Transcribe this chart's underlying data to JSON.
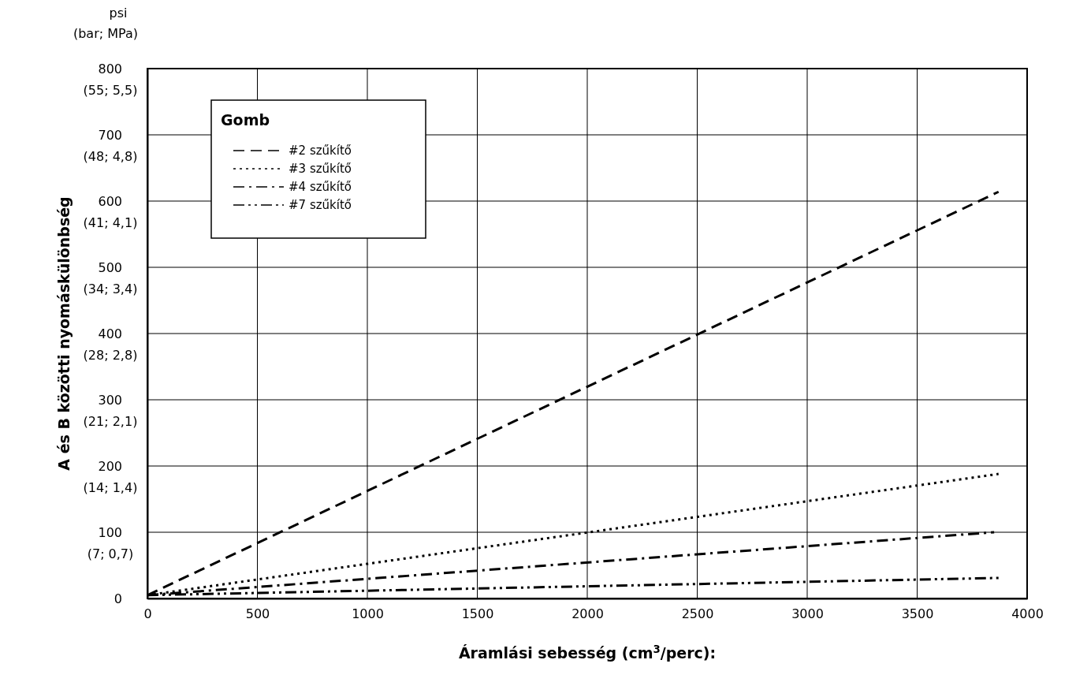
{
  "chart_data": {
    "type": "line",
    "xlabel": "Áramlási sebesség (cm$^{3}$/perc):",
    "ylabel": "A és B közötti nyomáskülönbség",
    "legend_title": "Gomb",
    "legend": "top left",
    "grid": true,
    "annotations": [
      "psi\n(bar; MPa)",
      "(7; 0,7)",
      "(14; 1,4)",
      "(21; 2,1)",
      "(28; 2,8)",
      "(34; 3,4)",
      "(41; 4,1)",
      "(48; 4,8)",
      "(55; 5,5)"
    ],
    "xlim": [
      0,
      4000
    ],
    "xticks": [
      0,
      500,
      1000,
      1500,
      2000,
      2500,
      3000,
      3500,
      4000
    ],
    "ylim": [
      0,
      800
    ],
    "yticks": [
      0,
      100,
      200,
      300,
      400,
      500,
      600,
      700,
      800
    ],
    "series": [
      {
        "name": "#2 szűkítő",
        "color": "#000000",
        "line_style": "dashed",
        "x": [
          0,
          3870
        ],
        "values": [
          5,
          614
        ]
      },
      {
        "name": "#3 szűkítő",
        "color": "#000000",
        "line_style": "dotted",
        "x": [
          0,
          3870
        ],
        "values": [
          5,
          188
        ]
      },
      {
        "name": "#4 szűkítő",
        "color": "#000000",
        "line_style": "dashdot",
        "x": [
          0,
          3850
        ],
        "values": [
          5,
          100
        ]
      },
      {
        "name": "#7 szűkítő",
        "color": "#000000",
        "line_style": "dashdotdot",
        "x": [
          0,
          3870
        ],
        "values": [
          5,
          31
        ]
      }
    ]
  }
}
